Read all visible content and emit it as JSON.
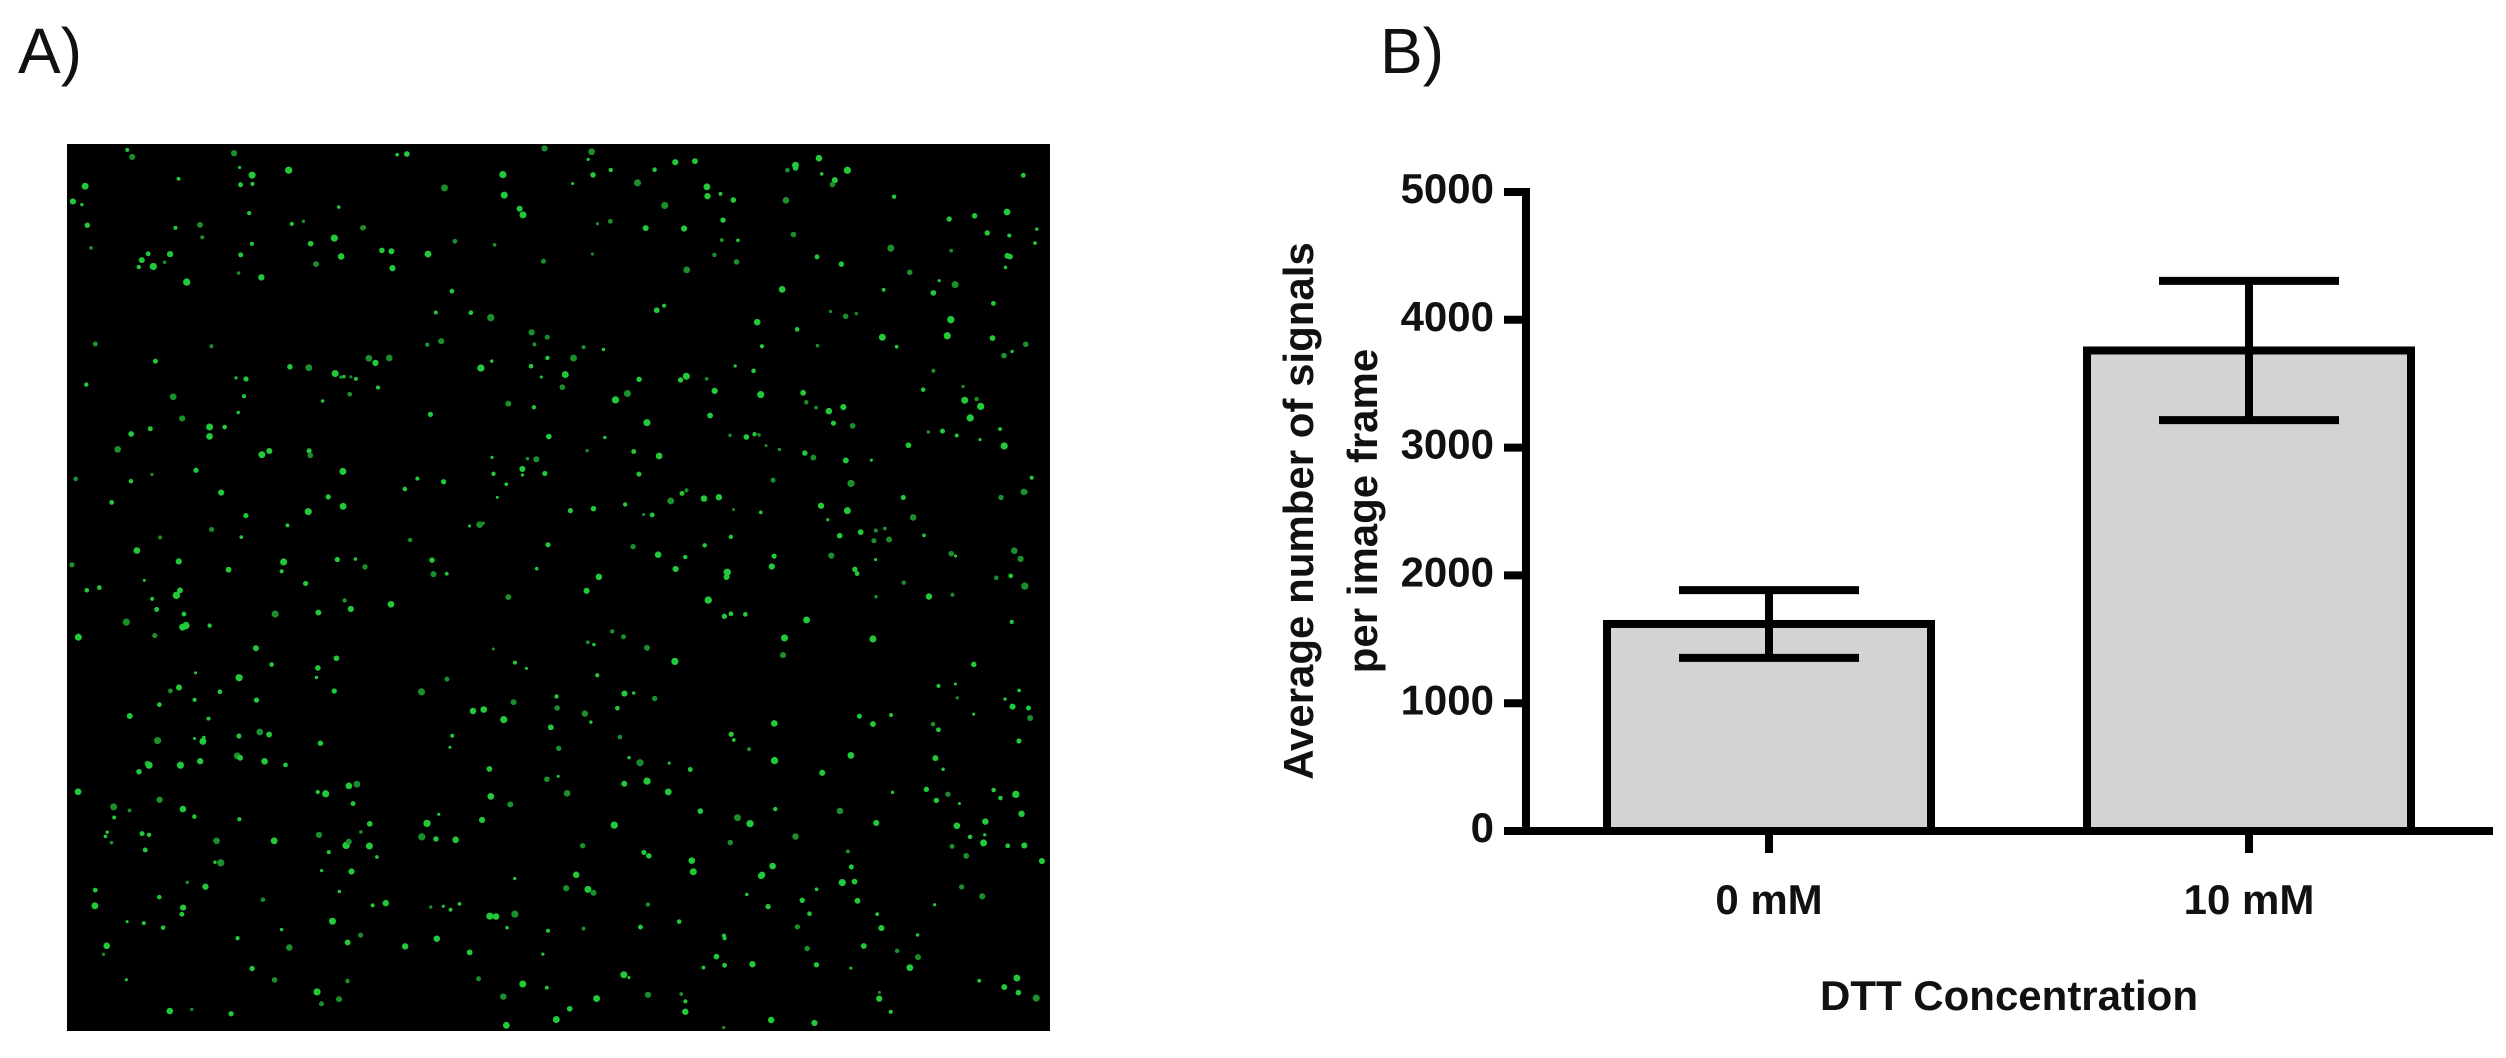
{
  "panel_labels": [
    "A)",
    "B)"
  ],
  "chart_data": {
    "type": "bar",
    "ylabel": [
      "Average number of signals",
      "per image frame"
    ],
    "xlabel": "DTT Concentration",
    "categories": [
      "0 mM",
      "10 mM"
    ],
    "values": [
      1620,
      3760
    ],
    "errors": [
      265,
      545
    ],
    "color": "#d3d3d3",
    "ylim": [
      0,
      5000
    ],
    "yticks": [
      0,
      1000,
      2000,
      3000,
      4000,
      5000
    ]
  }
}
